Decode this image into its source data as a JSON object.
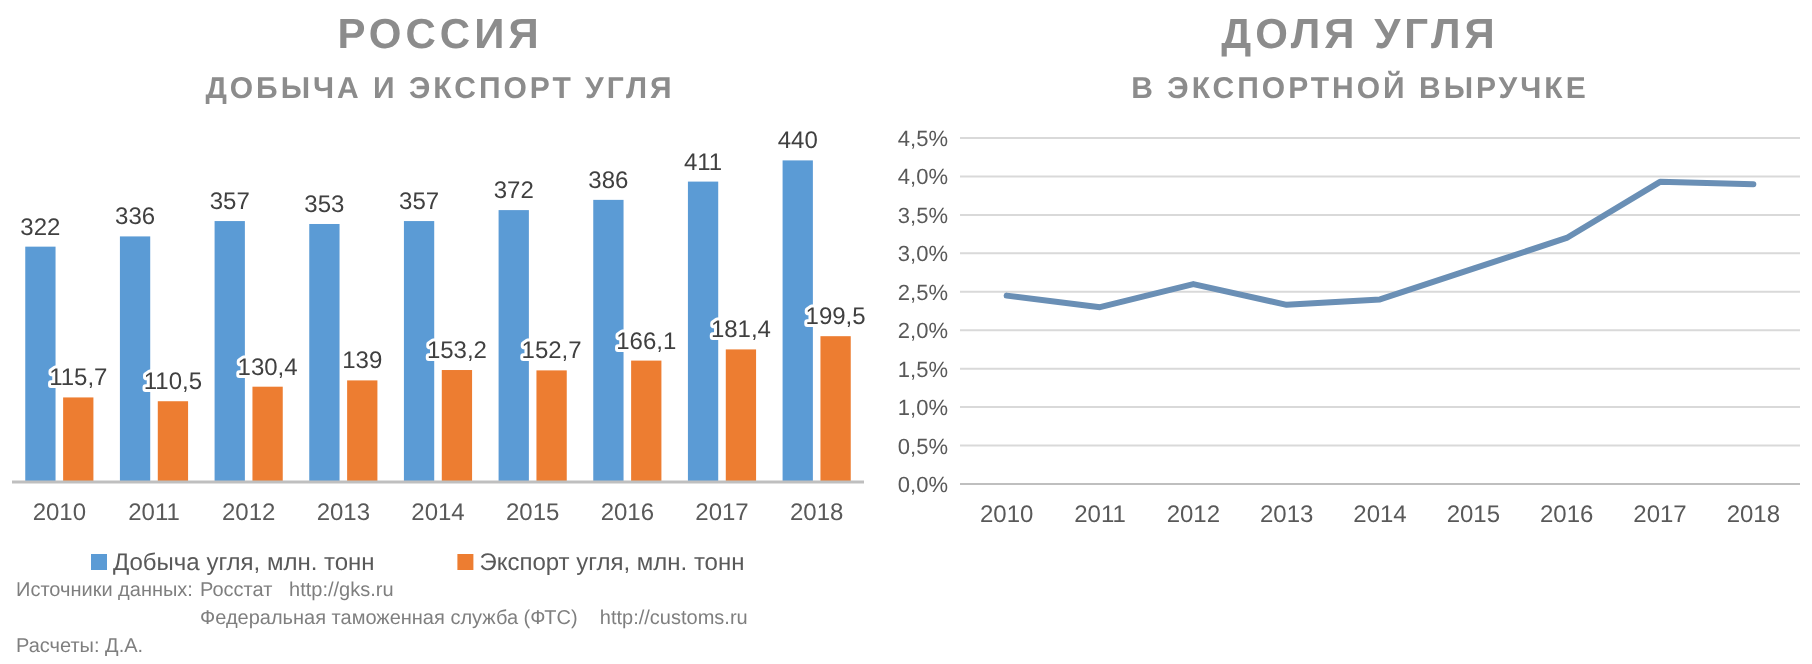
{
  "chart_data": [
    {
      "type": "bar",
      "title": "РОССИЯ",
      "subtitle": "ДОБЫЧА И ЭКСПОРТ УГЛЯ",
      "categories": [
        "2010",
        "2011",
        "2012",
        "2013",
        "2014",
        "2015",
        "2016",
        "2017",
        "2018"
      ],
      "series": [
        {
          "name": "Добыча угля, млн. тонн",
          "color": "#5b9bd5",
          "values": [
            322,
            336,
            357,
            353,
            357,
            372,
            386,
            411,
            440
          ],
          "value_labels": [
            "322",
            "336",
            "357",
            "353",
            "357",
            "372",
            "386",
            "411",
            "440"
          ]
        },
        {
          "name": "Экспорт угля, млн. тонн",
          "color": "#ed7d31",
          "values": [
            115.7,
            110.5,
            130.4,
            139,
            153.2,
            152.7,
            166.1,
            181.4,
            199.5
          ],
          "value_labels": [
            "115,7",
            "110,5",
            "130,4",
            "139",
            "153,2",
            "152,7",
            "166,1",
            "181,4",
            "199,5"
          ]
        }
      ],
      "legend": "bottom",
      "annotations": [
        "Источники данных:",
        "Росстат   http://gks.ru",
        "Федеральная таможенная служба (ФТС)    http://customs.ru",
        "Расчеты: Д.А."
      ]
    },
    {
      "type": "line",
      "title": "ДОЛЯ УГЛЯ",
      "subtitle": "В ЭКСПОРТНОЙ ВЫРУЧКЕ",
      "categories": [
        "2010",
        "2011",
        "2012",
        "2013",
        "2014",
        "2015",
        "2016",
        "2017",
        "2018"
      ],
      "series": [
        {
          "color": "#6a8fb5",
          "values": [
            2.45,
            2.3,
            2.6,
            2.33,
            2.4,
            2.8,
            3.2,
            3.93,
            3.9
          ]
        }
      ],
      "ylim": [
        0,
        4.5
      ],
      "yticks": [
        {
          "value": 0,
          "label": "0,0%"
        },
        {
          "value": 0.5,
          "label": "0,5%"
        },
        {
          "value": 1,
          "label": "1,0%"
        },
        {
          "value": 1.5,
          "label": "1,5%"
        },
        {
          "value": 2,
          "label": "2,0%"
        },
        {
          "value": 2.5,
          "label": "2,5%"
        },
        {
          "value": 3,
          "label": "3,0%"
        },
        {
          "value": 3.5,
          "label": "3,5%"
        },
        {
          "value": 4,
          "label": "4,0%"
        },
        {
          "value": 4.5,
          "label": "4,5%"
        }
      ],
      "grid": "y",
      "marker": "none",
      "line_style": "solid"
    }
  ]
}
